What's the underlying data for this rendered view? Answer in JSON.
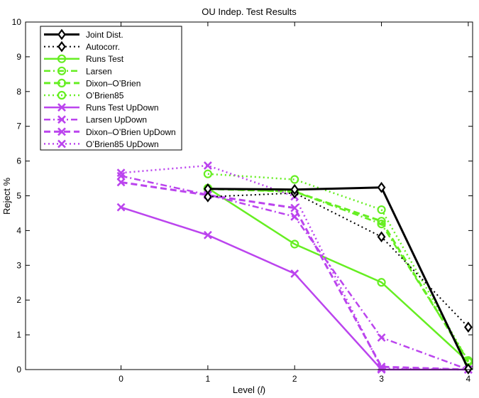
{
  "chart_data": {
    "type": "line",
    "title": "OU Indep. Test Results",
    "xlabel_prefix": "Level (",
    "xlabel_var": "l",
    "xlabel_suffix": ")",
    "ylabel": "Reject %",
    "xlim": [
      -1.1,
      4.05
    ],
    "ylim": [
      0,
      10
    ],
    "xticks": [
      0,
      1,
      2,
      3,
      4
    ],
    "yticks": [
      0,
      1,
      2,
      3,
      4,
      5,
      6,
      7,
      8,
      9,
      10
    ],
    "legend_position": "top-left",
    "series": [
      {
        "name": "Joint Dist.",
        "color": "#000000",
        "dash": "solid",
        "width": 3,
        "marker": "diamond",
        "x": [
          1,
          2,
          3,
          4
        ],
        "values": [
          5.2,
          5.18,
          5.24,
          0.02
        ]
      },
      {
        "name": "Autocorr.",
        "color": "#000000",
        "dash": "dotted",
        "width": 2,
        "marker": "diamond",
        "x": [
          1,
          2,
          3,
          4
        ],
        "values": [
          4.97,
          5.08,
          3.82,
          1.22
        ]
      },
      {
        "name": "Runs Test",
        "color": "#66ee22",
        "dash": "solid",
        "width": 2.5,
        "marker": "circle",
        "x": [
          1,
          2,
          3,
          4
        ],
        "values": [
          5.22,
          3.61,
          2.51,
          0.22
        ]
      },
      {
        "name": "Larsen",
        "color": "#66ee22",
        "dash": "dashdot",
        "width": 2.5,
        "marker": "circle",
        "x": [
          1,
          2,
          3,
          4
        ],
        "values": [
          5.21,
          5.12,
          4.19,
          0.26
        ]
      },
      {
        "name": "Dixon–O’Brien",
        "color": "#66ee22",
        "dash": "dashed",
        "width": 3,
        "marker": "circle",
        "x": [
          1,
          2,
          3,
          4
        ],
        "values": [
          5.2,
          5.12,
          4.27,
          0.23
        ]
      },
      {
        "name": "O’Brien85",
        "color": "#66ee22",
        "dash": "dotted",
        "width": 2.5,
        "marker": "circle",
        "x": [
          1,
          2,
          3,
          4
        ],
        "values": [
          5.63,
          5.47,
          4.6,
          0.24
        ]
      },
      {
        "name": "Runs Test UpDown",
        "color": "#bb44ee",
        "dash": "solid",
        "width": 2.5,
        "marker": "x",
        "x": [
          0,
          1,
          2,
          3,
          4
        ],
        "values": [
          4.67,
          3.87,
          2.76,
          0.0,
          0.0
        ]
      },
      {
        "name": "Larsen UpDown",
        "color": "#bb44ee",
        "dash": "dashdot",
        "width": 2.5,
        "marker": "x",
        "x": [
          0,
          1,
          2,
          3,
          4
        ],
        "values": [
          5.57,
          5.03,
          4.4,
          0.92,
          0.0
        ]
      },
      {
        "name": "Dixon–O’Brien UpDown",
        "color": "#bb44ee",
        "dash": "dashed",
        "width": 3,
        "marker": "x",
        "x": [
          0,
          1,
          2,
          3,
          4
        ],
        "values": [
          5.39,
          5.02,
          4.65,
          0.08,
          0.0
        ]
      },
      {
        "name": "O’Brien85 UpDown",
        "color": "#bb44ee",
        "dash": "dotted",
        "width": 2.5,
        "marker": "x",
        "x": [
          0,
          1,
          2,
          3,
          4
        ],
        "values": [
          5.66,
          5.87,
          4.98,
          0.03,
          0.0
        ]
      }
    ]
  }
}
